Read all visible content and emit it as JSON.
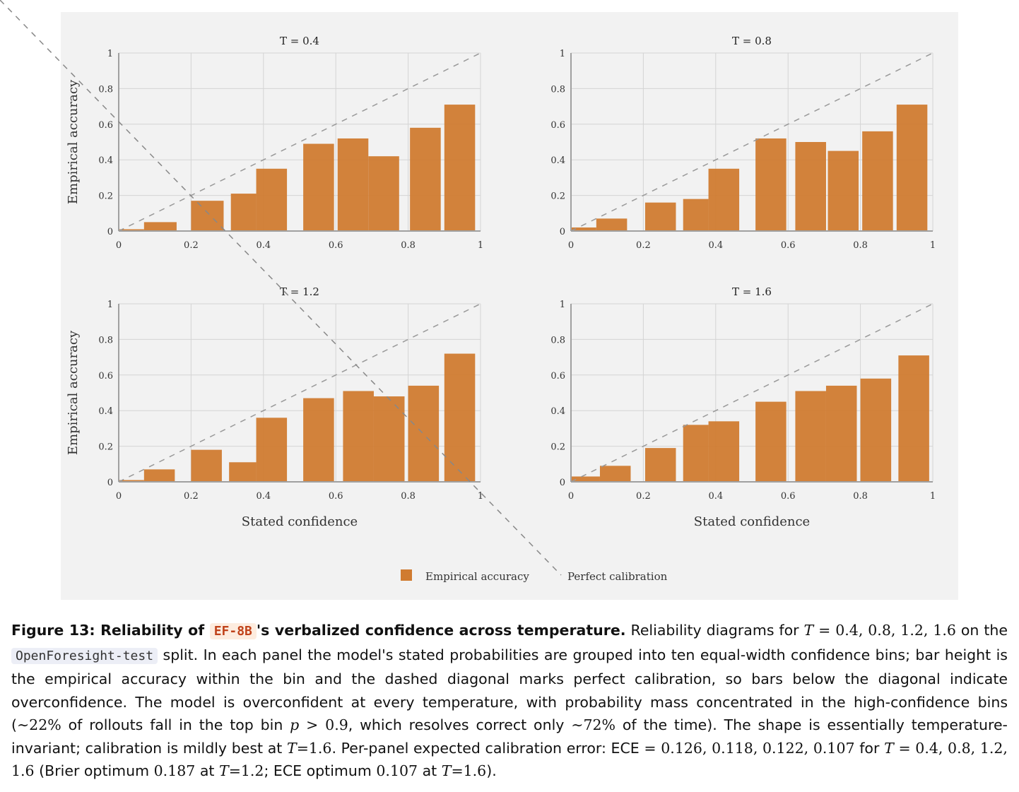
{
  "chart_data": [
    {
      "type": "bar",
      "title": "T = 0.4",
      "ylabel": "Empirical accuracy",
      "xlabel": "",
      "xlim": [
        0,
        1
      ],
      "ylim": [
        0,
        1
      ],
      "xticks": [
        "0",
        "0.2",
        "0.4",
        "0.6",
        "0.8",
        "1"
      ],
      "yticks": [
        "0",
        "0.2",
        "0.4",
        "0.6",
        "0.8",
        "1"
      ],
      "bins": [
        [
          0.0,
          0.07
        ],
        [
          0.07,
          0.16
        ],
        [
          0.2,
          0.29
        ],
        [
          0.31,
          0.38
        ],
        [
          0.38,
          0.465
        ],
        [
          0.51,
          0.595
        ],
        [
          0.605,
          0.69
        ],
        [
          0.69,
          0.775
        ],
        [
          0.805,
          0.89
        ],
        [
          0.9,
          0.985
        ]
      ],
      "values": [
        0.01,
        0.05,
        0.17,
        0.21,
        0.35,
        0.49,
        0.52,
        0.42,
        0.58,
        0.71
      ],
      "grid": true
    },
    {
      "type": "bar",
      "title": "T = 0.8",
      "ylabel": "",
      "xlabel": "",
      "xlim": [
        0,
        1
      ],
      "ylim": [
        0,
        1
      ],
      "xticks": [
        "0",
        "0.2",
        "0.4",
        "0.6",
        "0.8",
        "1"
      ],
      "yticks": [
        "0",
        "0.2",
        "0.4",
        "0.6",
        "0.8",
        "1"
      ],
      "bins": [
        [
          0.0,
          0.07
        ],
        [
          0.07,
          0.155
        ],
        [
          0.205,
          0.29
        ],
        [
          0.31,
          0.38
        ],
        [
          0.38,
          0.465
        ],
        [
          0.51,
          0.595
        ],
        [
          0.62,
          0.705
        ],
        [
          0.71,
          0.795
        ],
        [
          0.805,
          0.89
        ],
        [
          0.9,
          0.985
        ]
      ],
      "values": [
        0.02,
        0.07,
        0.16,
        0.18,
        0.35,
        0.52,
        0.5,
        0.45,
        0.56,
        0.71
      ],
      "grid": true
    },
    {
      "type": "bar",
      "title": "T = 1.2",
      "ylabel": "Empirical accuracy",
      "xlabel": "Stated confidence",
      "xlim": [
        0,
        1
      ],
      "ylim": [
        0,
        1
      ],
      "xticks": [
        "0",
        "0.2",
        "0.4",
        "0.6",
        "0.8",
        "1"
      ],
      "yticks": [
        "0",
        "0.2",
        "0.4",
        "0.6",
        "0.8",
        "1"
      ],
      "bins": [
        [
          0.0,
          0.07
        ],
        [
          0.07,
          0.155
        ],
        [
          0.2,
          0.285
        ],
        [
          0.305,
          0.38
        ],
        [
          0.38,
          0.465
        ],
        [
          0.51,
          0.595
        ],
        [
          0.62,
          0.705
        ],
        [
          0.705,
          0.79
        ],
        [
          0.8,
          0.885
        ],
        [
          0.9,
          0.985
        ]
      ],
      "values": [
        0.01,
        0.07,
        0.18,
        0.11,
        0.36,
        0.47,
        0.51,
        0.48,
        0.54,
        0.72
      ],
      "grid": true
    },
    {
      "type": "bar",
      "title": "T = 1.6",
      "ylabel": "",
      "xlabel": "Stated confidence",
      "xlim": [
        0,
        1
      ],
      "ylim": [
        0,
        1
      ],
      "xticks": [
        "0",
        "0.2",
        "0.4",
        "0.6",
        "0.8",
        "1"
      ],
      "yticks": [
        "0",
        "0.2",
        "0.4",
        "0.6",
        "0.8",
        "1"
      ],
      "bins": [
        [
          0.0,
          0.08
        ],
        [
          0.08,
          0.165
        ],
        [
          0.205,
          0.29
        ],
        [
          0.31,
          0.38
        ],
        [
          0.38,
          0.465
        ],
        [
          0.51,
          0.595
        ],
        [
          0.62,
          0.705
        ],
        [
          0.705,
          0.79
        ],
        [
          0.8,
          0.885
        ],
        [
          0.905,
          0.99
        ]
      ],
      "values": [
        0.03,
        0.09,
        0.19,
        0.32,
        0.34,
        0.45,
        0.51,
        0.54,
        0.58,
        0.71
      ],
      "grid": true
    }
  ],
  "legend": {
    "placement": "bottom-center",
    "bar_label": "Empirical accuracy",
    "line_label": "Perfect calibration"
  },
  "colors": {
    "bar": "#d07b30",
    "diagonal": "#999999",
    "grid": "#d4d4d4",
    "axis": "#a0a0a0",
    "panel_background": "#f2f2f2"
  },
  "caption": {
    "label": "Figure 13: Reliability of",
    "model": "EF-8B",
    "title_rest": "'s verbalized confidence across temperature.",
    "s1": "Reliability diagrams for",
    "t_sym": "T",
    "t_values": "= 0.4, 0.8, 1.2, 1.6",
    "s2": "on the",
    "split": "OpenForesight-test",
    "s3": "split. In each panel the model's stated probabilities are grouped into ten equal-width confidence bins; bar height is the empirical accuracy within the bin and the dashed diagonal marks perfect calibration, so bars below the diagonal indicate overconfidence. The model is overconfident at every temperature, with probability mass concentrated in the high-confidence bins (",
    "m_22": "∼22%",
    "s4": "of rollouts fall in the top bin",
    "p_sym": "p",
    "m_p": "> 0.9",
    "s5": ", which resolves correct only",
    "m_72": "∼72%",
    "s6": "of the time). The shape is essentially temperature-invariant; calibration is mildly best at",
    "m_t16": "=1.6",
    "s7": ". Per-panel expected calibration error: ECE =",
    "ece_values": "0.126, 0.118, 0.122, 0.107",
    "s8": "for",
    "m_tvals2": "= 0.4, 0.8, 1.2, 1.6",
    "s9": "(Brier optimum",
    "brier": "0.187",
    "s10": "at",
    "m_t12": "=1.2",
    "s11": "; ECE optimum",
    "ece_opt": "0.107",
    "s12": "at",
    "m_t16b": "=1.6",
    "s13": ")."
  }
}
